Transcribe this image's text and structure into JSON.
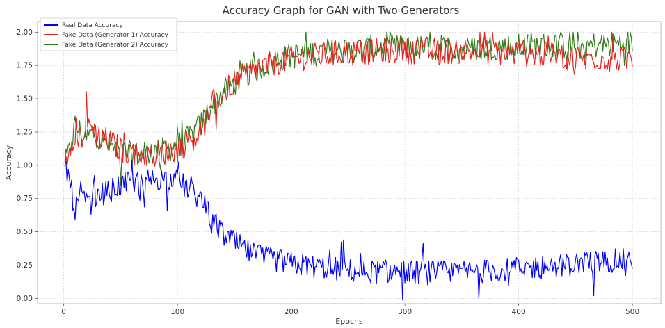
{
  "chart_data": {
    "type": "line",
    "title": "Accuracy Graph for GAN with Two Generators",
    "xlabel": "Epochs",
    "ylabel": "Accuracy",
    "xlim": [
      -23,
      525
    ],
    "ylim": [
      -0.04,
      2.08
    ],
    "xticks": [
      0,
      100,
      200,
      300,
      400,
      500
    ],
    "yticks": [
      0.0,
      0.25,
      0.5,
      0.75,
      1.0,
      1.25,
      1.5,
      1.75,
      2.0
    ],
    "ytick_labels": [
      "0.00",
      "0.25",
      "0.50",
      "0.75",
      "1.00",
      "1.25",
      "1.50",
      "1.75",
      "2.00"
    ],
    "grid": true,
    "legend_position": "top-left",
    "series": [
      {
        "name": "Real Data Accuracy",
        "color": "#0000ff",
        "x": [
          1,
          5,
          10,
          15,
          20,
          25,
          30,
          40,
          50,
          60,
          70,
          80,
          90,
          100,
          110,
          120,
          130,
          140,
          150,
          160,
          170,
          180,
          190,
          200,
          220,
          240,
          260,
          280,
          300,
          320,
          340,
          360,
          380,
          400,
          420,
          440,
          460,
          480,
          500
        ],
        "y": [
          1.0,
          0.9,
          0.65,
          0.8,
          0.7,
          0.75,
          0.78,
          0.8,
          0.85,
          0.87,
          0.88,
          0.9,
          0.9,
          0.88,
          0.82,
          0.75,
          0.6,
          0.48,
          0.42,
          0.36,
          0.32,
          0.3,
          0.28,
          0.26,
          0.24,
          0.22,
          0.2,
          0.2,
          0.2,
          0.19,
          0.2,
          0.2,
          0.21,
          0.22,
          0.24,
          0.25,
          0.27,
          0.28,
          0.29
        ]
      },
      {
        "name": "Fake Data (Generator 1) Accuracy",
        "color": "#e8231f",
        "x": [
          1,
          5,
          10,
          15,
          20,
          25,
          30,
          40,
          50,
          60,
          70,
          80,
          90,
          100,
          110,
          120,
          130,
          140,
          150,
          160,
          170,
          180,
          190,
          200,
          220,
          240,
          260,
          280,
          300,
          320,
          340,
          360,
          380,
          400,
          420,
          440,
          460,
          480,
          500
        ],
        "y": [
          1.0,
          1.15,
          1.25,
          1.2,
          1.3,
          1.3,
          1.22,
          1.18,
          1.12,
          1.1,
          1.08,
          1.08,
          1.1,
          1.12,
          1.18,
          1.25,
          1.4,
          1.55,
          1.62,
          1.68,
          1.72,
          1.75,
          1.78,
          1.8,
          1.82,
          1.84,
          1.85,
          1.86,
          1.86,
          1.86,
          1.86,
          1.86,
          1.85,
          1.84,
          1.83,
          1.82,
          1.81,
          1.8,
          1.79
        ]
      },
      {
        "name": "Fake Data (Generator 2) Accuracy",
        "color": "#2e7d1a",
        "x": [
          1,
          5,
          10,
          15,
          20,
          25,
          30,
          40,
          50,
          60,
          70,
          80,
          90,
          100,
          110,
          120,
          130,
          140,
          150,
          160,
          170,
          180,
          190,
          200,
          220,
          240,
          260,
          280,
          300,
          320,
          340,
          360,
          380,
          400,
          420,
          440,
          460,
          480,
          500
        ],
        "y": [
          1.0,
          1.1,
          1.3,
          1.25,
          1.2,
          1.25,
          1.22,
          1.15,
          1.1,
          1.08,
          1.08,
          1.1,
          1.12,
          1.15,
          1.2,
          1.3,
          1.45,
          1.55,
          1.62,
          1.68,
          1.72,
          1.76,
          1.8,
          1.82,
          1.85,
          1.86,
          1.87,
          1.88,
          1.88,
          1.88,
          1.88,
          1.88,
          1.89,
          1.89,
          1.9,
          1.9,
          1.9,
          1.91,
          1.92
        ]
      }
    ]
  }
}
